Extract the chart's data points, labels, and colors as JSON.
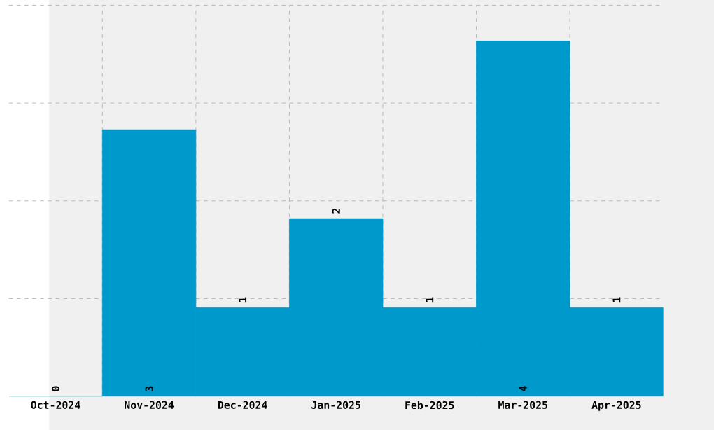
{
  "chart_data": {
    "type": "bar",
    "categories": [
      "Oct-2024",
      "Nov-2024",
      "Dec-2024",
      "Jan-2025",
      "Feb-2025",
      "Mar-2025",
      "Apr-2025"
    ],
    "values": [
      0,
      3,
      1,
      2,
      1,
      4,
      1
    ],
    "color": "#0099cc",
    "ylim": [
      0,
      4.4
    ],
    "yticks": [
      {
        "value": 1.1,
        "label": null
      },
      {
        "value": 2.2,
        "label": null
      },
      {
        "value": 3.3,
        "label": null
      },
      {
        "value": 4.4,
        "label": null
      }
    ],
    "tick_labels": "x",
    "grid": true,
    "data_labels": true
  }
}
